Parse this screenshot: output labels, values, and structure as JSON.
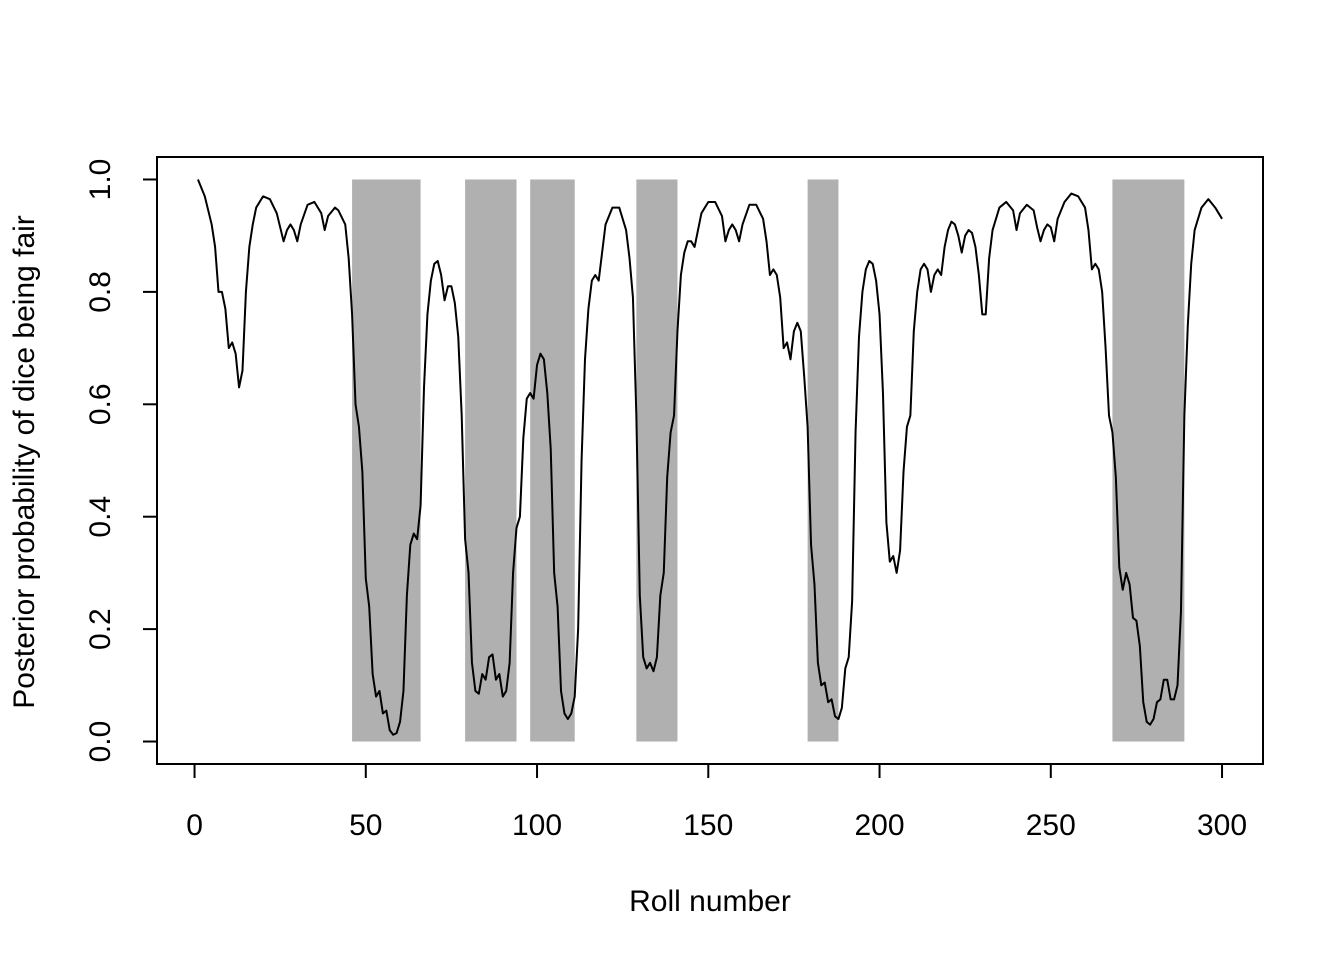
{
  "chart_data": {
    "type": "line",
    "xlabel": "Roll number",
    "ylabel": "Posterior probability of dice being fair",
    "xlim": [
      -10.96,
      311.96
    ],
    "ylim": [
      -0.04,
      1.04
    ],
    "xticks": [
      0,
      50,
      100,
      150,
      200,
      250,
      300
    ],
    "yticks": [
      {
        "value": 0,
        "label": "0.0"
      },
      0.2,
      0.4,
      0.6,
      0.8,
      {
        "value": 1,
        "label": "1.0"
      }
    ],
    "color": "#000000",
    "region_color": "#b0b0b0",
    "shaded_regions": [
      {
        "x": [
          46,
          66
        ],
        "y": [
          0,
          1
        ]
      },
      {
        "x": [
          79,
          94
        ],
        "y": [
          0,
          1
        ]
      },
      {
        "x": [
          98,
          111
        ],
        "y": [
          0,
          1
        ]
      },
      {
        "x": [
          129,
          141
        ],
        "y": [
          0,
          1
        ]
      },
      {
        "x": [
          179,
          188
        ],
        "y": [
          0,
          1
        ]
      },
      {
        "x": [
          268,
          289
        ],
        "y": [
          0,
          1
        ]
      }
    ],
    "x": [
      1,
      3,
      5,
      6,
      7,
      8,
      9,
      10,
      11,
      12,
      13,
      14,
      15,
      16,
      17,
      18,
      20,
      22,
      24,
      26,
      27,
      28,
      29,
      30,
      31,
      33,
      35,
      37,
      38,
      39,
      41,
      42,
      44,
      45,
      46,
      47,
      48,
      49,
      50,
      51,
      52,
      53,
      54,
      55,
      56,
      57,
      58,
      59,
      60,
      61,
      62,
      63,
      64,
      65,
      66,
      67,
      68,
      69,
      70,
      71,
      72,
      73,
      74,
      75,
      76,
      77,
      78,
      79,
      80,
      81,
      82,
      83,
      84,
      85,
      86,
      87,
      88,
      89,
      90,
      91,
      92,
      93,
      94,
      95,
      96,
      97,
      98,
      99,
      100,
      101,
      102,
      103,
      104,
      105,
      106,
      107,
      108,
      109,
      110,
      111,
      112,
      113,
      114,
      115,
      116,
      117,
      118,
      119,
      120,
      122,
      124,
      126,
      127,
      128,
      129,
      130,
      131,
      132,
      133,
      134,
      135,
      136,
      137,
      138,
      139,
      140,
      141,
      142,
      143,
      144,
      145,
      146,
      147,
      148,
      150,
      152,
      154,
      155,
      156,
      157,
      158,
      159,
      160,
      162,
      164,
      166,
      167,
      168,
      169,
      170,
      171,
      172,
      173,
      174,
      175,
      176,
      177,
      178,
      179,
      180,
      181,
      182,
      183,
      184,
      185,
      186,
      187,
      188,
      189,
      190,
      191,
      192,
      193,
      194,
      195,
      196,
      197,
      198,
      199,
      200,
      201,
      202,
      203,
      204,
      205,
      206,
      207,
      208,
      209,
      210,
      211,
      212,
      213,
      214,
      215,
      216,
      217,
      218,
      219,
      220,
      221,
      222,
      223,
      224,
      225,
      226,
      227,
      228,
      229,
      230,
      231,
      232,
      233,
      235,
      237,
      239,
      240,
      241,
      243,
      245,
      246,
      247,
      248,
      249,
      250,
      251,
      252,
      254,
      256,
      258,
      260,
      261,
      262,
      263,
      264,
      265,
      266,
      267,
      268,
      269,
      270,
      271,
      272,
      273,
      274,
      275,
      276,
      277,
      278,
      279,
      280,
      281,
      282,
      283,
      284,
      285,
      286,
      287,
      288,
      289,
      290,
      291,
      292,
      294,
      296,
      298,
      300
    ],
    "values": [
      1.0,
      0.97,
      0.92,
      0.88,
      0.8,
      0.8,
      0.77,
      0.7,
      0.71,
      0.69,
      0.63,
      0.66,
      0.8,
      0.88,
      0.92,
      0.95,
      0.97,
      0.965,
      0.94,
      0.89,
      0.91,
      0.92,
      0.91,
      0.89,
      0.92,
      0.955,
      0.96,
      0.94,
      0.91,
      0.935,
      0.95,
      0.945,
      0.92,
      0.86,
      0.76,
      0.6,
      0.56,
      0.48,
      0.29,
      0.24,
      0.12,
      0.08,
      0.09,
      0.05,
      0.055,
      0.02,
      0.012,
      0.015,
      0.035,
      0.09,
      0.26,
      0.35,
      0.37,
      0.36,
      0.42,
      0.63,
      0.76,
      0.82,
      0.85,
      0.855,
      0.83,
      0.785,
      0.81,
      0.81,
      0.78,
      0.72,
      0.58,
      0.36,
      0.3,
      0.14,
      0.09,
      0.085,
      0.12,
      0.11,
      0.15,
      0.155,
      0.11,
      0.12,
      0.08,
      0.09,
      0.14,
      0.3,
      0.38,
      0.4,
      0.54,
      0.61,
      0.62,
      0.61,
      0.67,
      0.69,
      0.68,
      0.62,
      0.52,
      0.3,
      0.24,
      0.09,
      0.05,
      0.04,
      0.05,
      0.08,
      0.2,
      0.5,
      0.68,
      0.77,
      0.82,
      0.83,
      0.82,
      0.87,
      0.92,
      0.95,
      0.95,
      0.91,
      0.86,
      0.79,
      0.58,
      0.26,
      0.15,
      0.13,
      0.14,
      0.125,
      0.15,
      0.26,
      0.3,
      0.47,
      0.55,
      0.58,
      0.73,
      0.83,
      0.87,
      0.89,
      0.89,
      0.88,
      0.91,
      0.94,
      0.96,
      0.96,
      0.935,
      0.89,
      0.91,
      0.92,
      0.91,
      0.89,
      0.92,
      0.955,
      0.955,
      0.93,
      0.89,
      0.83,
      0.84,
      0.83,
      0.79,
      0.7,
      0.71,
      0.68,
      0.73,
      0.745,
      0.73,
      0.65,
      0.56,
      0.35,
      0.28,
      0.14,
      0.1,
      0.105,
      0.07,
      0.075,
      0.045,
      0.04,
      0.06,
      0.13,
      0.15,
      0.25,
      0.55,
      0.72,
      0.8,
      0.84,
      0.855,
      0.85,
      0.82,
      0.76,
      0.62,
      0.39,
      0.32,
      0.33,
      0.3,
      0.34,
      0.48,
      0.56,
      0.58,
      0.73,
      0.8,
      0.84,
      0.85,
      0.84,
      0.8,
      0.83,
      0.84,
      0.83,
      0.88,
      0.91,
      0.925,
      0.92,
      0.9,
      0.87,
      0.9,
      0.91,
      0.905,
      0.88,
      0.83,
      0.76,
      0.76,
      0.86,
      0.91,
      0.95,
      0.96,
      0.945,
      0.91,
      0.94,
      0.955,
      0.945,
      0.915,
      0.89,
      0.91,
      0.92,
      0.915,
      0.89,
      0.93,
      0.96,
      0.975,
      0.97,
      0.95,
      0.91,
      0.84,
      0.85,
      0.84,
      0.8,
      0.7,
      0.58,
      0.55,
      0.47,
      0.31,
      0.27,
      0.3,
      0.28,
      0.22,
      0.215,
      0.17,
      0.07,
      0.035,
      0.03,
      0.04,
      0.07,
      0.075,
      0.11,
      0.11,
      0.075,
      0.075,
      0.1,
      0.23,
      0.58,
      0.74,
      0.85,
      0.91,
      0.95,
      0.965,
      0.95,
      0.93
    ]
  }
}
